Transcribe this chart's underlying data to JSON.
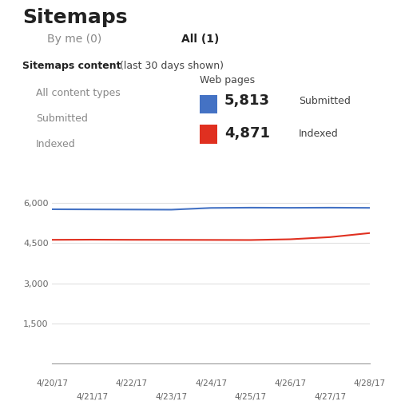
{
  "title": "Sitemaps",
  "tab1_label": "By me (0)",
  "tab2_label": "All (1)",
  "section_title": "Sitemaps content",
  "section_subtitle": " (last 30 days shown)",
  "left_panel_items": [
    "All content types",
    "Submitted",
    "Indexed"
  ],
  "right_panel_title": "Web pages",
  "submitted_value": "5,813",
  "indexed_value": "4,871",
  "submitted_label": "Submitted",
  "indexed_label": "Indexed",
  "submitted_color": "#4472c4",
  "indexed_color": "#e03020",
  "x_labels_top": [
    "4/20/17",
    "4/22/17",
    "4/24/17",
    "4/26/17",
    "4/28/17"
  ],
  "x_labels_bottom": [
    "4/21/17",
    "4/23/17",
    "4/25/17",
    "4/27/17"
  ],
  "yticks": [
    0,
    1500,
    3000,
    4500,
    6000
  ],
  "ytick_labels": [
    "",
    "1,500",
    "3,000",
    "4,500",
    "6,000"
  ],
  "blue_line_x": [
    0,
    1,
    2,
    3,
    4,
    5,
    6,
    7,
    8
  ],
  "blue_line_y": [
    5760,
    5755,
    5750,
    5745,
    5810,
    5820,
    5815,
    5820,
    5813
  ],
  "red_line_x": [
    0,
    1,
    2,
    3,
    4,
    5,
    6,
    7,
    8
  ],
  "red_line_y": [
    4620,
    4625,
    4620,
    4618,
    4615,
    4612,
    4640,
    4720,
    4871
  ],
  "bg_color": "#ffffff",
  "grid_color": "#e0e0e0",
  "axis_text_color": "#666666",
  "tab_active_underline": "#e03020"
}
